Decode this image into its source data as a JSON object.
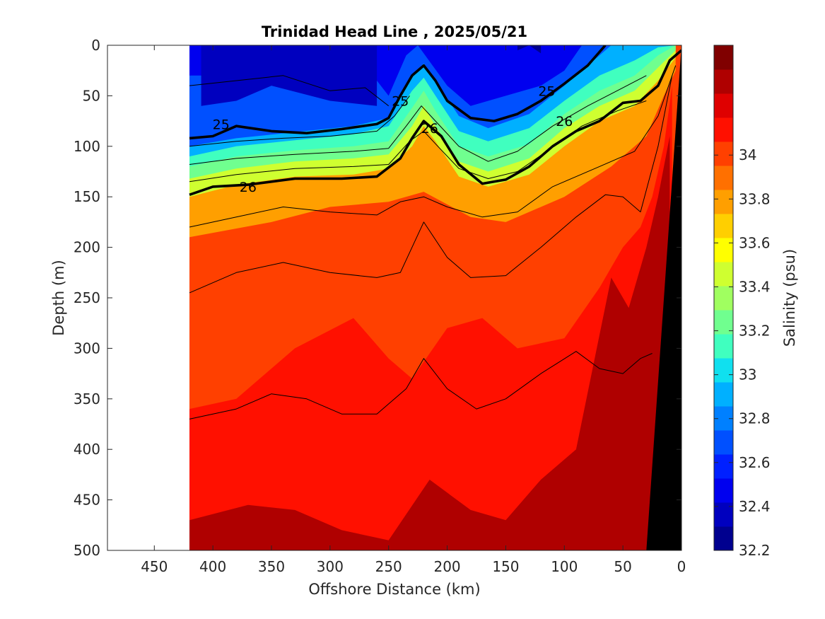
{
  "chart_data": {
    "type": "heatmap",
    "title": "Trinidad Head Line , 2025/05/21",
    "xlabel": "Offshore Distance (km)",
    "ylabel": "Depth (m)",
    "colorbar_label": "Salinity (psu)",
    "xlim": [
      490,
      0
    ],
    "ylim": [
      500,
      0
    ],
    "x_ticks": [
      450,
      400,
      350,
      300,
      250,
      200,
      150,
      100,
      50,
      0
    ],
    "y_ticks": [
      0,
      50,
      100,
      150,
      200,
      250,
      300,
      350,
      400,
      450,
      500
    ],
    "colorbar_range": [
      32.2,
      34.5
    ],
    "colorbar_ticks": [
      32.2,
      32.4,
      32.6,
      32.8,
      33,
      33.2,
      33.4,
      33.6,
      33.8,
      34
    ],
    "colorbar_colors": [
      "#00008f",
      "#0000bf",
      "#0000ef",
      "#0020ff",
      "#0050ff",
      "#0080ff",
      "#00b0ff",
      "#10e0ef",
      "#40ffbf",
      "#70ff8f",
      "#a0ff60",
      "#cfff30",
      "#ffff00",
      "#ffcf00",
      "#ff9f00",
      "#ff7000",
      "#ff4000",
      "#ff1000",
      "#df0000",
      "#af0000",
      "#800000"
    ],
    "data_extent_km": [
      420,
      0
    ],
    "bathymetry_color": "#000000",
    "bathymetry": [
      [
        0,
        0
      ],
      [
        0,
        500
      ],
      [
        30,
        500
      ]
    ],
    "salinity_bands": [
      {
        "level": 33.9,
        "top": [
          [
            420,
            190
          ],
          [
            350,
            175
          ],
          [
            300,
            160
          ],
          [
            250,
            155
          ],
          [
            220,
            145
          ],
          [
            180,
            170
          ],
          [
            150,
            175
          ],
          [
            100,
            150
          ],
          [
            60,
            120
          ],
          [
            30,
            90
          ],
          [
            15,
            50
          ],
          [
            5,
            25
          ]
        ]
      },
      {
        "level": 33.6,
        "top": [
          [
            420,
            150
          ],
          [
            380,
            138
          ],
          [
            330,
            130
          ],
          [
            280,
            128
          ],
          [
            250,
            122
          ],
          [
            230,
            100
          ],
          [
            220,
            80
          ],
          [
            210,
            95
          ],
          [
            190,
            130
          ],
          [
            165,
            140
          ],
          [
            130,
            128
          ],
          [
            100,
            100
          ],
          [
            70,
            75
          ],
          [
            40,
            60
          ],
          [
            20,
            35
          ],
          [
            5,
            12
          ]
        ]
      },
      {
        "level": 33.4,
        "top": [
          [
            420,
            132
          ],
          [
            380,
            122
          ],
          [
            330,
            115
          ],
          [
            280,
            112
          ],
          [
            250,
            108
          ],
          [
            230,
            80
          ],
          [
            220,
            60
          ],
          [
            210,
            80
          ],
          [
            190,
            115
          ],
          [
            165,
            125
          ],
          [
            130,
            112
          ],
          [
            100,
            82
          ],
          [
            70,
            60
          ],
          [
            40,
            45
          ],
          [
            20,
            22
          ],
          [
            5,
            5
          ]
        ]
      },
      {
        "level": 33.2,
        "top": [
          [
            420,
            120
          ],
          [
            380,
            110
          ],
          [
            330,
            104
          ],
          [
            280,
            100
          ],
          [
            250,
            95
          ],
          [
            230,
            62
          ],
          [
            220,
            45
          ],
          [
            210,
            65
          ],
          [
            190,
            100
          ],
          [
            165,
            110
          ],
          [
            130,
            98
          ],
          [
            100,
            68
          ],
          [
            70,
            45
          ],
          [
            40,
            30
          ],
          [
            20,
            10
          ],
          [
            5,
            0
          ]
        ]
      },
      {
        "level": 33.0,
        "top": [
          [
            420,
            110
          ],
          [
            380,
            100
          ],
          [
            330,
            94
          ],
          [
            280,
            88
          ],
          [
            250,
            80
          ],
          [
            230,
            45
          ],
          [
            220,
            32
          ],
          [
            210,
            50
          ],
          [
            190,
            85
          ],
          [
            165,
            95
          ],
          [
            130,
            82
          ],
          [
            100,
            55
          ],
          [
            70,
            30
          ],
          [
            40,
            15
          ],
          [
            20,
            2
          ],
          [
            5,
            0
          ]
        ]
      },
      {
        "level": 32.8,
        "top": [
          [
            420,
            100
          ],
          [
            380,
            92
          ],
          [
            330,
            86
          ],
          [
            280,
            80
          ],
          [
            250,
            72
          ],
          [
            230,
            30
          ],
          [
            220,
            18
          ],
          [
            210,
            35
          ],
          [
            190,
            70
          ],
          [
            165,
            82
          ],
          [
            130,
            68
          ],
          [
            100,
            40
          ],
          [
            80,
            20
          ],
          [
            60,
            0
          ],
          [
            40,
            0
          ]
        ]
      },
      {
        "level": 32.6,
        "top": [
          [
            420,
            30
          ],
          [
            380,
            30
          ],
          [
            340,
            20
          ],
          [
            300,
            40
          ],
          [
            260,
            35
          ],
          [
            250,
            50
          ],
          [
            235,
            10
          ],
          [
            225,
            0
          ],
          [
            200,
            40
          ],
          [
            180,
            60
          ],
          [
            150,
            50
          ],
          [
            120,
            40
          ],
          [
            100,
            25
          ],
          [
            85,
            0
          ]
        ]
      },
      {
        "level": 32.5,
        "top": [
          [
            410,
            60
          ],
          [
            380,
            55
          ],
          [
            350,
            40
          ],
          [
            300,
            55
          ],
          [
            260,
            60
          ]
        ]
      },
      {
        "level": 32.4,
        "top": [
          [
            140,
            5
          ],
          [
            130,
            0
          ],
          [
            120,
            8
          ]
        ]
      }
    ],
    "deep_bands": [
      {
        "level": 34.1,
        "top": [
          [
            420,
            360
          ],
          [
            380,
            350
          ],
          [
            330,
            300
          ],
          [
            280,
            270
          ],
          [
            250,
            310
          ],
          [
            230,
            330
          ],
          [
            200,
            280
          ],
          [
            170,
            270
          ],
          [
            140,
            300
          ],
          [
            100,
            290
          ],
          [
            70,
            240
          ],
          [
            50,
            200
          ],
          [
            35,
            180
          ],
          [
            25,
            150
          ],
          [
            15,
            100
          ],
          [
            8,
            40
          ]
        ]
      },
      {
        "level": 34.3,
        "top": [
          [
            420,
            470
          ],
          [
            370,
            455
          ],
          [
            330,
            460
          ],
          [
            290,
            480
          ],
          [
            250,
            490
          ],
          [
            215,
            430
          ],
          [
            180,
            460
          ],
          [
            150,
            470
          ],
          [
            120,
            430
          ],
          [
            90,
            400
          ],
          [
            60,
            230
          ],
          [
            45,
            260
          ],
          [
            30,
            200
          ],
          [
            20,
            150
          ],
          [
            10,
            90
          ]
        ]
      }
    ],
    "sigma_contours": [
      {
        "label": "25",
        "bold": true,
        "points": [
          [
            420,
            92
          ],
          [
            400,
            90
          ],
          [
            390,
            85
          ],
          [
            380,
            80
          ],
          [
            350,
            85
          ],
          [
            320,
            87
          ],
          [
            290,
            83
          ],
          [
            260,
            78
          ],
          [
            250,
            72
          ],
          [
            240,
            50
          ],
          [
            230,
            30
          ],
          [
            220,
            20
          ],
          [
            210,
            35
          ],
          [
            200,
            55
          ],
          [
            180,
            72
          ],
          [
            160,
            75
          ],
          [
            140,
            68
          ],
          [
            120,
            55
          ],
          [
            100,
            38
          ],
          [
            80,
            20
          ],
          [
            65,
            0
          ]
        ],
        "label_at": [
          [
            393,
            78
          ],
          [
            240,
            55
          ],
          [
            115,
            45
          ]
        ]
      },
      {
        "label": "26",
        "bold": true,
        "points": [
          [
            420,
            148
          ],
          [
            400,
            140
          ],
          [
            370,
            138
          ],
          [
            330,
            132
          ],
          [
            290,
            132
          ],
          [
            260,
            130
          ],
          [
            240,
            112
          ],
          [
            230,
            92
          ],
          [
            220,
            75
          ],
          [
            205,
            90
          ],
          [
            190,
            118
          ],
          [
            170,
            137
          ],
          [
            150,
            133
          ],
          [
            130,
            120
          ],
          [
            110,
            100
          ],
          [
            90,
            85
          ],
          [
            70,
            75
          ],
          [
            50,
            57
          ],
          [
            35,
            55
          ],
          [
            20,
            40
          ],
          [
            10,
            15
          ],
          [
            0,
            5
          ]
        ],
        "label_at": [
          [
            370,
            140
          ],
          [
            215,
            82
          ],
          [
            100,
            75
          ]
        ]
      },
      {
        "label": "",
        "bold": false,
        "points": [
          [
            420,
            180
          ],
          [
            380,
            170
          ],
          [
            340,
            160
          ],
          [
            300,
            165
          ],
          [
            260,
            168
          ],
          [
            240,
            155
          ],
          [
            220,
            150
          ],
          [
            200,
            160
          ],
          [
            170,
            170
          ],
          [
            140,
            165
          ],
          [
            110,
            140
          ],
          [
            70,
            120
          ],
          [
            40,
            105
          ],
          [
            20,
            70
          ],
          [
            5,
            20
          ]
        ]
      },
      {
        "label": "",
        "bold": false,
        "points": [
          [
            420,
            245
          ],
          [
            380,
            225
          ],
          [
            340,
            215
          ],
          [
            300,
            225
          ],
          [
            260,
            230
          ],
          [
            240,
            225
          ],
          [
            220,
            175
          ],
          [
            200,
            210
          ],
          [
            180,
            230
          ],
          [
            150,
            228
          ],
          [
            120,
            200
          ],
          [
            90,
            170
          ],
          [
            65,
            148
          ],
          [
            50,
            150
          ],
          [
            35,
            165
          ],
          [
            20,
            100
          ],
          [
            8,
            30
          ]
        ]
      },
      {
        "label": "",
        "bold": false,
        "points": [
          [
            420,
            370
          ],
          [
            380,
            360
          ],
          [
            350,
            345
          ],
          [
            320,
            350
          ],
          [
            290,
            365
          ],
          [
            260,
            365
          ],
          [
            235,
            340
          ],
          [
            220,
            310
          ],
          [
            200,
            340
          ],
          [
            175,
            360
          ],
          [
            150,
            350
          ],
          [
            120,
            325
          ],
          [
            90,
            303
          ],
          [
            70,
            320
          ],
          [
            50,
            325
          ],
          [
            35,
            310
          ],
          [
            25,
            305
          ]
        ]
      },
      {
        "label": "",
        "bold": false,
        "points": [
          [
            420,
            40
          ],
          [
            380,
            35
          ],
          [
            340,
            30
          ],
          [
            300,
            45
          ],
          [
            270,
            42
          ],
          [
            250,
            60
          ]
        ]
      },
      {
        "label": "",
        "bold": false,
        "points": [
          [
            420,
            100
          ],
          [
            380,
            95
          ],
          [
            340,
            92
          ],
          [
            300,
            90
          ],
          [
            260,
            85
          ],
          [
            245,
            70
          ],
          [
            232,
            50
          ]
        ]
      },
      {
        "label": "",
        "bold": false,
        "points": [
          [
            420,
            118
          ],
          [
            380,
            112
          ],
          [
            330,
            108
          ],
          [
            280,
            105
          ],
          [
            250,
            102
          ],
          [
            235,
            80
          ],
          [
            222,
            60
          ],
          [
            210,
            75
          ],
          [
            190,
            100
          ],
          [
            165,
            115
          ],
          [
            140,
            105
          ],
          [
            110,
            80
          ],
          [
            80,
            60
          ],
          [
            55,
            45
          ],
          [
            30,
            30
          ]
        ]
      },
      {
        "label": "",
        "bold": false,
        "points": [
          [
            420,
            135
          ],
          [
            380,
            128
          ],
          [
            330,
            122
          ],
          [
            280,
            120
          ],
          [
            250,
            118
          ],
          [
            232,
            95
          ],
          [
            220,
            85
          ],
          [
            208,
            100
          ],
          [
            190,
            122
          ],
          [
            165,
            132
          ],
          [
            140,
            125
          ],
          [
            115,
            105
          ],
          [
            85,
            80
          ],
          [
            55,
            65
          ],
          [
            30,
            55
          ]
        ]
      }
    ]
  }
}
